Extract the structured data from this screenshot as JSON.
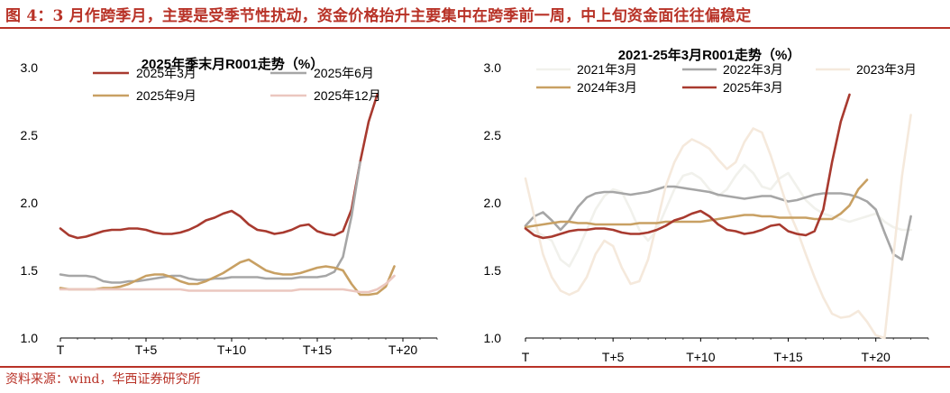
{
  "figure": {
    "title": "图 4：3 月作跨季月，主要是受季节性扰动，资金价格抬升主要集中在跨季前一周，中上旬资金面往往偏稳定",
    "source": "资料来源：wind，华西证券研究所"
  },
  "chart_data": [
    {
      "type": "line",
      "title": "2025年季末月R001走势（%）",
      "xlabel": "",
      "ylabel": "",
      "x_tick_labels": [
        "T",
        "T+5",
        "T+10",
        "T+15",
        "T+20"
      ],
      "y_tick_labels": [
        "1.0",
        "1.5",
        "2.0",
        "2.5",
        "3.0"
      ],
      "ylim": [
        1.0,
        3.0
      ],
      "x_range": [
        0,
        22
      ],
      "grid": false,
      "legend_position": "top",
      "series": [
        {
          "name": "2025年3月",
          "color": "#a83a2f",
          "x": [
            0,
            0.5,
            1,
            1.5,
            2,
            2.5,
            3,
            3.5,
            4,
            4.5,
            5,
            5.5,
            6,
            6.5,
            7,
            7.5,
            8,
            8.5,
            9,
            9.5,
            10,
            10.5,
            11,
            11.5,
            12,
            12.5,
            13,
            13.5,
            14,
            14.5,
            15,
            15.5,
            16,
            16.5,
            17,
            17.5,
            18,
            18.5,
            19,
            19.5
          ],
          "values": [
            1.81,
            1.76,
            1.74,
            1.75,
            1.77,
            1.79,
            1.8,
            1.8,
            1.81,
            1.81,
            1.8,
            1.78,
            1.77,
            1.77,
            1.78,
            1.8,
            1.83,
            1.87,
            1.89,
            1.92,
            1.94,
            1.9,
            1.84,
            1.8,
            1.79,
            1.77,
            1.78,
            1.8,
            1.83,
            1.84,
            1.79,
            1.77,
            1.76,
            1.79,
            1.95,
            2.3,
            2.6,
            2.8,
            null,
            null
          ]
        },
        {
          "name": "2025年6月",
          "color": "#a6a6a6",
          "x": [
            0,
            0.5,
            1,
            1.5,
            2,
            2.5,
            3,
            3.5,
            4,
            4.5,
            5,
            5.5,
            6,
            6.5,
            7,
            7.5,
            8,
            8.5,
            9,
            9.5,
            10,
            10.5,
            11,
            11.5,
            12,
            12.5,
            13,
            13.5,
            14,
            14.5,
            15,
            15.5,
            16,
            16.5,
            17,
            17.5,
            18,
            18.5,
            19,
            19.5
          ],
          "values": [
            1.47,
            1.46,
            1.46,
            1.46,
            1.45,
            1.42,
            1.41,
            1.41,
            1.42,
            1.42,
            1.43,
            1.44,
            1.45,
            1.46,
            1.46,
            1.44,
            1.43,
            1.43,
            1.44,
            1.44,
            1.45,
            1.45,
            1.45,
            1.45,
            1.44,
            1.44,
            1.44,
            1.44,
            1.45,
            1.45,
            1.45,
            1.46,
            1.49,
            1.6,
            1.9,
            2.3,
            null,
            null,
            null,
            null
          ]
        },
        {
          "name": "2025年9月",
          "color": "#c8a063",
          "x": [
            0,
            0.5,
            1,
            1.5,
            2,
            2.5,
            3,
            3.5,
            4,
            4.5,
            5,
            5.5,
            6,
            6.5,
            7,
            7.5,
            8,
            8.5,
            9,
            9.5,
            10,
            10.5,
            11,
            11.5,
            12,
            12.5,
            13,
            13.5,
            14,
            14.5,
            15,
            15.5,
            16,
            16.5,
            17,
            17.5,
            18,
            18.5,
            19,
            19.5
          ],
          "values": [
            1.37,
            1.36,
            1.36,
            1.36,
            1.36,
            1.37,
            1.37,
            1.38,
            1.4,
            1.43,
            1.46,
            1.47,
            1.47,
            1.45,
            1.42,
            1.4,
            1.4,
            1.42,
            1.45,
            1.48,
            1.52,
            1.56,
            1.58,
            1.54,
            1.5,
            1.48,
            1.47,
            1.47,
            1.48,
            1.5,
            1.52,
            1.53,
            1.52,
            1.5,
            1.4,
            1.32,
            1.32,
            1.33,
            1.38,
            1.53
          ]
        },
        {
          "name": "2025年12月",
          "color": "#ebc7bf",
          "x": [
            0,
            0.5,
            1,
            1.5,
            2,
            2.5,
            3,
            3.5,
            4,
            4.5,
            5,
            5.5,
            6,
            6.5,
            7,
            7.5,
            8,
            8.5,
            9,
            9.5,
            10,
            10.5,
            11,
            11.5,
            12,
            12.5,
            13,
            13.5,
            14,
            14.5,
            15,
            15.5,
            16,
            16.5,
            17,
            17.5,
            18,
            18.5,
            19,
            19.5
          ],
          "values": [
            1.36,
            1.36,
            1.36,
            1.36,
            1.36,
            1.36,
            1.36,
            1.36,
            1.36,
            1.36,
            1.36,
            1.36,
            1.36,
            1.36,
            1.36,
            1.35,
            1.35,
            1.35,
            1.35,
            1.35,
            1.35,
            1.35,
            1.35,
            1.35,
            1.35,
            1.35,
            1.35,
            1.35,
            1.36,
            1.36,
            1.36,
            1.36,
            1.36,
            1.36,
            1.35,
            1.34,
            1.34,
            1.36,
            1.4,
            1.46
          ]
        }
      ]
    },
    {
      "type": "line",
      "title": "2021-25年3月R001走势（%）",
      "xlabel": "",
      "ylabel": "",
      "x_tick_labels": [
        "T",
        "T+5",
        "T+10",
        "T+15",
        "T+20"
      ],
      "y_tick_labels": [
        "1.0",
        "1.5",
        "2.0",
        "2.5",
        "3.0"
      ],
      "ylim": [
        1.0,
        3.0
      ],
      "x_range": [
        0,
        23
      ],
      "grid": false,
      "legend_position": "top",
      "series": [
        {
          "name": "2021年3月",
          "color": "#f1f1ec",
          "x": [
            0,
            0.5,
            1,
            1.5,
            2,
            2.5,
            3,
            3.5,
            4,
            4.5,
            5,
            5.5,
            6,
            6.5,
            7,
            7.5,
            8,
            8.5,
            9,
            9.5,
            10,
            10.5,
            11,
            11.5,
            12,
            12.5,
            13,
            13.5,
            14,
            14.5,
            15,
            15.5,
            16,
            16.5,
            17,
            17.5,
            18,
            18.5,
            19,
            19.5,
            20,
            20.5,
            21,
            21.5,
            22
          ],
          "values": [
            1.82,
            1.79,
            1.76,
            1.72,
            1.58,
            1.53,
            1.65,
            1.8,
            1.95,
            2.05,
            2.1,
            2.08,
            1.95,
            1.8,
            1.72,
            1.8,
            1.95,
            2.1,
            2.2,
            2.22,
            2.18,
            2.1,
            2.05,
            2.1,
            2.2,
            2.28,
            2.22,
            2.12,
            2.1,
            2.18,
            2.22,
            2.12,
            2.02,
            1.96,
            1.92,
            1.9,
            1.88,
            1.86,
            1.88,
            1.9,
            1.92,
            1.86,
            1.82,
            1.8,
            1.8
          ]
        },
        {
          "name": "2022年3月",
          "color": "#a6a6a6",
          "x": [
            0,
            0.5,
            1,
            1.5,
            2,
            2.5,
            3,
            3.5,
            4,
            4.5,
            5,
            5.5,
            6,
            6.5,
            7,
            7.5,
            8,
            8.5,
            9,
            9.5,
            10,
            10.5,
            11,
            11.5,
            12,
            12.5,
            13,
            13.5,
            14,
            14.5,
            15,
            15.5,
            16,
            16.5,
            17,
            17.5,
            18,
            18.5,
            19,
            19.5,
            20,
            20.5,
            21,
            21.5,
            22
          ],
          "values": [
            1.83,
            1.9,
            1.93,
            1.87,
            1.8,
            1.87,
            1.97,
            2.04,
            2.07,
            2.08,
            2.08,
            2.07,
            2.06,
            2.07,
            2.08,
            2.1,
            2.12,
            2.12,
            2.11,
            2.1,
            2.09,
            2.08,
            2.06,
            2.05,
            2.04,
            2.03,
            2.04,
            2.05,
            2.05,
            2.03,
            2.01,
            2.02,
            2.04,
            2.06,
            2.07,
            2.07,
            2.07,
            2.06,
            2.04,
            2.01,
            1.95,
            1.78,
            1.62,
            1.58,
            1.9
          ]
        },
        {
          "name": "2023年3月",
          "color": "#f5e9dc",
          "x": [
            0,
            0.5,
            1,
            1.5,
            2,
            2.5,
            3,
            3.5,
            4,
            4.5,
            5,
            5.5,
            6,
            6.5,
            7,
            7.5,
            8,
            8.5,
            9,
            9.5,
            10,
            10.5,
            11,
            11.5,
            12,
            12.5,
            13,
            13.5,
            14,
            14.5,
            15,
            15.5,
            16,
            16.5,
            17,
            17.5,
            18,
            18.5,
            19,
            19.5,
            20,
            20.5,
            21,
            21.5,
            22
          ],
          "values": [
            2.18,
            1.9,
            1.62,
            1.45,
            1.35,
            1.32,
            1.35,
            1.45,
            1.62,
            1.72,
            1.68,
            1.52,
            1.4,
            1.42,
            1.58,
            1.85,
            2.12,
            2.3,
            2.42,
            2.47,
            2.44,
            2.4,
            2.32,
            2.25,
            2.3,
            2.45,
            2.55,
            2.52,
            2.35,
            2.15,
            1.95,
            1.8,
            1.62,
            1.45,
            1.3,
            1.18,
            1.15,
            1.16,
            1.2,
            1.12,
            1.02,
            1.0,
            1.6,
            2.2,
            2.65
          ]
        },
        {
          "name": "2024年3月",
          "color": "#c8a063",
          "x": [
            0,
            0.5,
            1,
            1.5,
            2,
            2.5,
            3,
            3.5,
            4,
            4.5,
            5,
            5.5,
            6,
            6.5,
            7,
            7.5,
            8,
            8.5,
            9,
            9.5,
            10,
            10.5,
            11,
            11.5,
            12,
            12.5,
            13,
            13.5,
            14,
            14.5,
            15,
            15.5,
            16,
            16.5,
            17,
            17.5,
            18,
            18.5,
            19,
            19.5,
            20,
            20.5,
            21,
            21.5,
            22
          ],
          "values": [
            1.82,
            1.83,
            1.84,
            1.85,
            1.86,
            1.86,
            1.85,
            1.85,
            1.84,
            1.84,
            1.84,
            1.84,
            1.84,
            1.85,
            1.85,
            1.85,
            1.86,
            1.86,
            1.86,
            1.86,
            1.86,
            1.87,
            1.88,
            1.89,
            1.9,
            1.91,
            1.91,
            1.9,
            1.9,
            1.89,
            1.89,
            1.89,
            1.89,
            1.88,
            1.88,
            1.88,
            1.92,
            1.98,
            2.1,
            2.17,
            null,
            null,
            null,
            null,
            null
          ]
        },
        {
          "name": "2025年3月",
          "color": "#a83a2f",
          "x": [
            0,
            0.5,
            1,
            1.5,
            2,
            2.5,
            3,
            3.5,
            4,
            4.5,
            5,
            5.5,
            6,
            6.5,
            7,
            7.5,
            8,
            8.5,
            9,
            9.5,
            10,
            10.5,
            11,
            11.5,
            12,
            12.5,
            13,
            13.5,
            14,
            14.5,
            15,
            15.5,
            16,
            16.5,
            17,
            17.5,
            18,
            18.5,
            19,
            19.5,
            20,
            20.5,
            21,
            21.5,
            22
          ],
          "values": [
            1.81,
            1.76,
            1.74,
            1.75,
            1.77,
            1.79,
            1.8,
            1.8,
            1.81,
            1.81,
            1.8,
            1.78,
            1.77,
            1.77,
            1.78,
            1.8,
            1.83,
            1.87,
            1.89,
            1.92,
            1.94,
            1.9,
            1.84,
            1.8,
            1.79,
            1.77,
            1.78,
            1.8,
            1.83,
            1.84,
            1.79,
            1.77,
            1.76,
            1.79,
            1.95,
            2.3,
            2.6,
            2.8,
            null,
            null,
            null,
            null,
            null,
            null,
            null
          ]
        }
      ]
    }
  ]
}
